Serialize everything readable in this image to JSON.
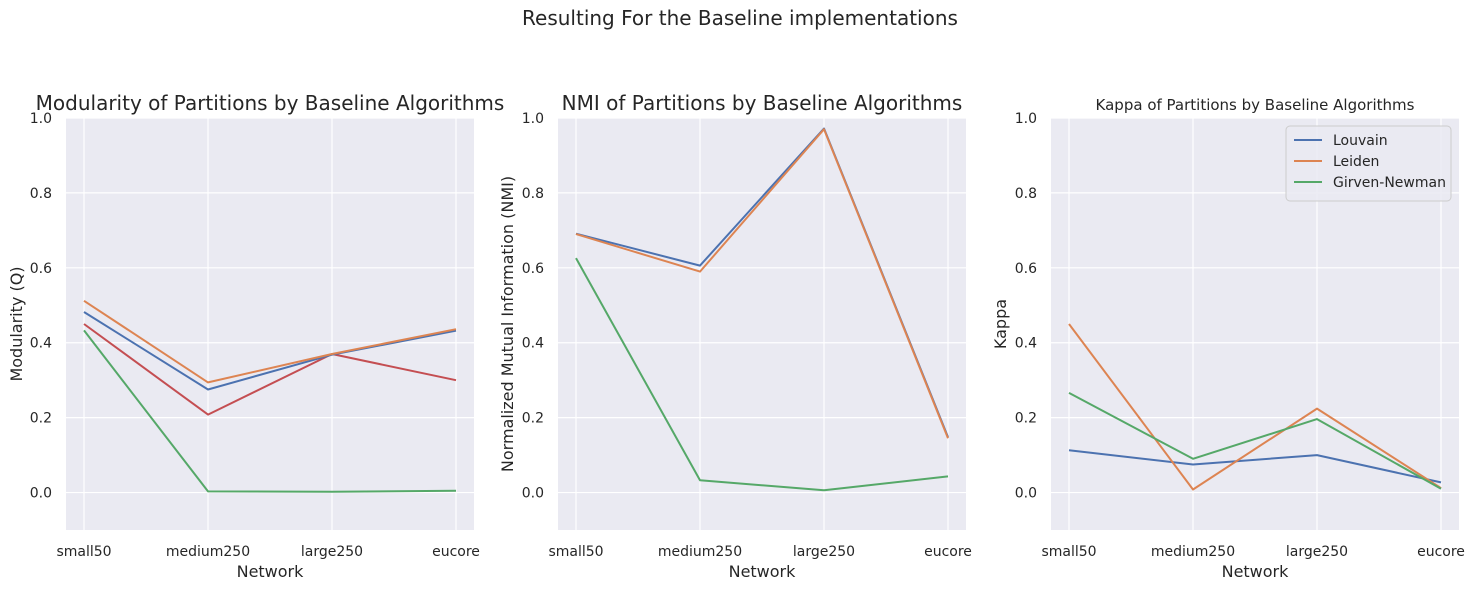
{
  "figure": {
    "suptitle": "Resulting For the Baseline implementations",
    "colors": {
      "background": "#eaeaf2",
      "grid": "#ffffff",
      "louvain": "#4c72b0",
      "leiden": "#dd8452",
      "girvan_newman": "#55a868",
      "red_series": "#c44e52"
    }
  },
  "chart_data": [
    {
      "type": "line",
      "title": "Modularity of Partitions by Baseline Algorithms",
      "xlabel": "Network",
      "ylabel": "Modularity (Q)",
      "categories": [
        "small50",
        "medium250",
        "large250",
        "eucore"
      ],
      "ylim": [
        -0.1,
        1.0
      ],
      "yticks": [
        0.0,
        0.2,
        0.4,
        0.6,
        0.8,
        1.0
      ],
      "grid": true,
      "series": [
        {
          "color": "#c44e52",
          "values": [
            0.45,
            0.208,
            0.37,
            0.3
          ]
        },
        {
          "color": "#4c72b0",
          "values": [
            0.482,
            0.275,
            0.368,
            0.432
          ]
        },
        {
          "color": "#dd8452",
          "values": [
            0.512,
            0.294,
            0.37,
            0.436
          ]
        },
        {
          "color": "#55a868",
          "values": [
            0.433,
            0.003,
            0.002,
            0.005
          ]
        }
      ]
    },
    {
      "type": "line",
      "title": "NMI of Partitions by Baseline Algorithms",
      "xlabel": "Network",
      "ylabel": "Normalized Mutual Information (NMI)",
      "categories": [
        "small50",
        "medium250",
        "large250",
        "eucore"
      ],
      "ylim": [
        -0.1,
        1.0
      ],
      "yticks": [
        0.0,
        0.2,
        0.4,
        0.6,
        0.8,
        1.0
      ],
      "grid": true,
      "series": [
        {
          "color": "#4c72b0",
          "values": [
            0.691,
            0.606,
            0.972,
            0.148
          ]
        },
        {
          "color": "#dd8452",
          "values": [
            0.69,
            0.59,
            0.97,
            0.145
          ]
        },
        {
          "color": "#55a868",
          "values": [
            0.626,
            0.033,
            0.006,
            0.043
          ]
        }
      ]
    },
    {
      "type": "line",
      "title": "Kappa of Partitions by Baseline Algorithms",
      "xlabel": "Network",
      "ylabel": "Kappa",
      "categories": [
        "small50",
        "medium250",
        "large250",
        "eucore"
      ],
      "ylim": [
        -0.1,
        1.0
      ],
      "yticks": [
        0.0,
        0.2,
        0.4,
        0.6,
        0.8,
        1.0
      ],
      "grid": true,
      "legend": "top-right",
      "series": [
        {
          "name": "Louvain",
          "color": "#4c72b0",
          "values": [
            0.113,
            0.075,
            0.1,
            0.027
          ]
        },
        {
          "name": "Leiden",
          "color": "#dd8452",
          "values": [
            0.45,
            0.008,
            0.224,
            0.012
          ]
        },
        {
          "name": "Girven-Newman",
          "color": "#55a868",
          "values": [
            0.266,
            0.09,
            0.196,
            0.01
          ]
        }
      ]
    }
  ]
}
